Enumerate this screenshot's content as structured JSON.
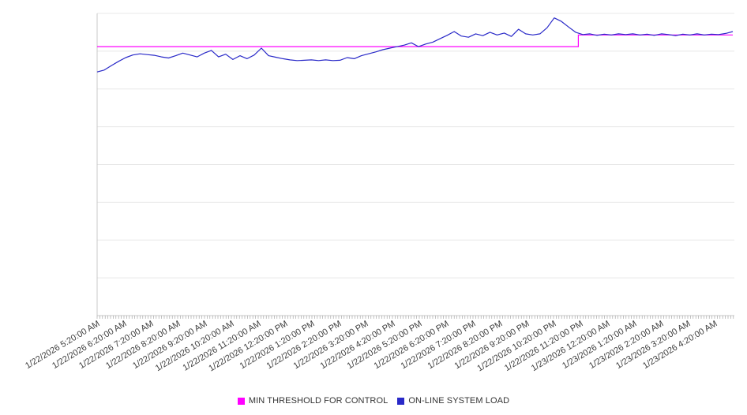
{
  "page": {
    "background": "#ffffff"
  },
  "legend": {
    "items": [
      {
        "label": "MIN THRESHOLD FOR CONTROL",
        "color": "#ff00ff"
      },
      {
        "label": "ON-LINE SYSTEM LOAD",
        "color": "#2929c8"
      }
    ]
  },
  "chart_data": {
    "type": "line",
    "title": "",
    "xlabel": "",
    "ylabel": "",
    "grid": "horizontal",
    "legend_position": "bottom-center",
    "y_axis_labels_visible": false,
    "ylim": [
      0,
      8
    ],
    "y_units": "gridline-units (no numeric labels shown on screen)",
    "x_tick_labels": [
      "1/22/2026 5:20:00 AM",
      "1/22/2026 6:20:00 AM",
      "1/22/2026 7:20:00 AM",
      "1/22/2026 8:20:00 AM",
      "1/22/2026 9:20:00 AM",
      "1/22/2026 10:20:00 AM",
      "1/22/2026 11:20:00 AM",
      "1/22/2026 12:20:00 PM",
      "1/22/2026 1:20:00 PM",
      "1/22/2026 2:20:00 PM",
      "1/22/2026 3:20:00 PM",
      "1/22/2026 4:20:00 PM",
      "1/22/2026 5:20:00 PM",
      "1/22/2026 6:20:00 PM",
      "1/22/2026 7:20:00 PM",
      "1/22/2026 8:20:00 PM",
      "1/22/2026 9:20:00 PM",
      "1/22/2026 10:20:00 PM",
      "1/22/2026 11:20:00 PM",
      "1/23/2026 12:20:00 AM",
      "1/23/2026 1:20:00 AM",
      "1/23/2026 2:20:00 AM",
      "1/23/2026 3:20:00 AM",
      "1/23/2026 4:20:00 AM"
    ],
    "series": [
      {
        "name": "MIN THRESHOLD FOR CONTROL",
        "color": "#ff00ff",
        "shape": "step",
        "step_at_label": "1/22/2026 11:20:00 PM",
        "x_fraction": [
          0,
          0.757,
          0.757,
          1
        ],
        "values": [
          7.12,
          7.12,
          7.43,
          7.43
        ]
      },
      {
        "name": "ON-LINE SYSTEM LOAD",
        "color": "#2929c8",
        "shape": "line",
        "values": [
          6.45,
          6.5,
          6.62,
          6.73,
          6.83,
          6.9,
          6.93,
          6.91,
          6.89,
          6.85,
          6.82,
          6.88,
          6.95,
          6.9,
          6.85,
          6.95,
          7.02,
          6.85,
          6.92,
          6.78,
          6.88,
          6.8,
          6.9,
          7.08,
          6.88,
          6.84,
          6.8,
          6.77,
          6.75,
          6.76,
          6.77,
          6.75,
          6.77,
          6.75,
          6.76,
          6.83,
          6.8,
          6.88,
          6.93,
          6.98,
          7.04,
          7.08,
          7.12,
          7.16,
          7.22,
          7.12,
          7.19,
          7.24,
          7.33,
          7.42,
          7.52,
          7.4,
          7.37,
          7.46,
          7.41,
          7.5,
          7.43,
          7.48,
          7.39,
          7.58,
          7.46,
          7.43,
          7.46,
          7.62,
          7.88,
          7.79,
          7.64,
          7.5,
          7.44,
          7.46,
          7.42,
          7.45,
          7.43,
          7.46,
          7.44,
          7.46,
          7.43,
          7.45,
          7.42,
          7.46,
          7.44,
          7.41,
          7.45,
          7.43,
          7.46,
          7.43,
          7.45,
          7.44,
          7.47,
          7.52
        ]
      }
    ],
    "style": {
      "axis_color": "#c8c8c8",
      "grid_color": "#e8e8e8",
      "tick_color": "#9a9a9a",
      "label_color": "#3c3c3c",
      "label_font_size": 11,
      "label_rotation_deg": -31
    }
  }
}
